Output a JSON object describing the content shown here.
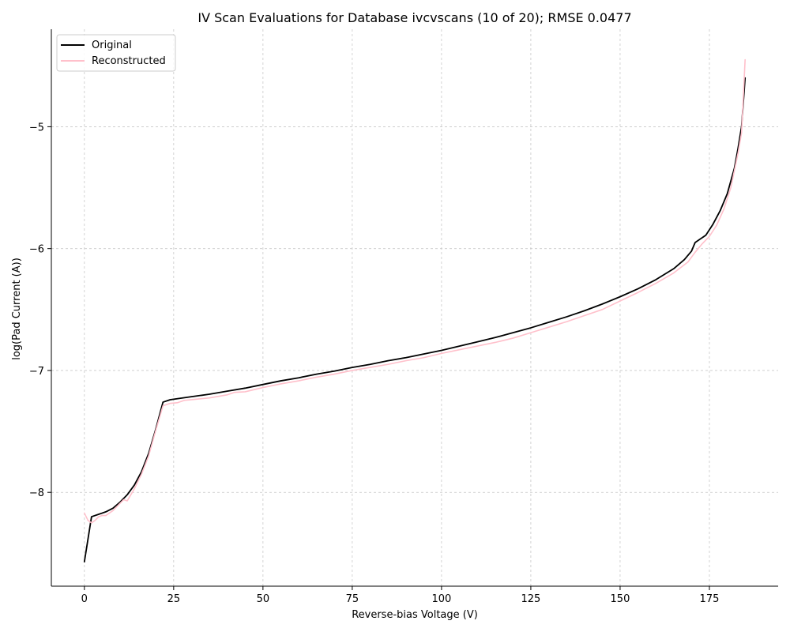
{
  "chart_data": {
    "type": "line",
    "title": "IV Scan Evaluations for Database ivcvscans (10 of 20); RMSE 0.0477",
    "xlabel": "Reverse-bias Voltage (V)",
    "ylabel": "log(Pad Current (A))",
    "xlim": [
      -9.25,
      194.25
    ],
    "ylim": [
      -8.77,
      -4.2
    ],
    "xticks": [
      0,
      25,
      50,
      75,
      100,
      125,
      150,
      175
    ],
    "yticks": [
      -8,
      -7,
      -6,
      -5
    ],
    "ytick_labels": [
      "−8",
      "−7",
      "−6",
      "−5"
    ],
    "grid": true,
    "legend_position": "upper-left",
    "series": [
      {
        "name": "Original",
        "color": "#000000",
        "points": [
          [
            0,
            -8.57
          ],
          [
            2,
            -8.2
          ],
          [
            4,
            -8.18
          ],
          [
            6,
            -8.16
          ],
          [
            8,
            -8.13
          ],
          [
            10,
            -8.08
          ],
          [
            12,
            -8.02
          ],
          [
            14,
            -7.94
          ],
          [
            16,
            -7.83
          ],
          [
            18,
            -7.68
          ],
          [
            20,
            -7.48
          ],
          [
            22,
            -7.26
          ],
          [
            24,
            -7.24
          ],
          [
            30,
            -7.215
          ],
          [
            35,
            -7.195
          ],
          [
            40,
            -7.17
          ],
          [
            45,
            -7.145
          ],
          [
            50,
            -7.115
          ],
          [
            55,
            -7.085
          ],
          [
            60,
            -7.06
          ],
          [
            65,
            -7.03
          ],
          [
            70,
            -7.005
          ],
          [
            75,
            -6.975
          ],
          [
            80,
            -6.95
          ],
          [
            85,
            -6.92
          ],
          [
            90,
            -6.895
          ],
          [
            95,
            -6.865
          ],
          [
            100,
            -6.835
          ],
          [
            105,
            -6.8
          ],
          [
            110,
            -6.765
          ],
          [
            115,
            -6.73
          ],
          [
            120,
            -6.69
          ],
          [
            125,
            -6.65
          ],
          [
            130,
            -6.605
          ],
          [
            135,
            -6.56
          ],
          [
            140,
            -6.51
          ],
          [
            145,
            -6.455
          ],
          [
            150,
            -6.395
          ],
          [
            155,
            -6.33
          ],
          [
            160,
            -6.255
          ],
          [
            165,
            -6.165
          ],
          [
            168,
            -6.09
          ],
          [
            170,
            -6.02
          ],
          [
            171,
            -5.95
          ],
          [
            174,
            -5.89
          ],
          [
            176,
            -5.8
          ],
          [
            178,
            -5.69
          ],
          [
            180,
            -5.55
          ],
          [
            182,
            -5.34
          ],
          [
            183,
            -5.18
          ],
          [
            184,
            -5.0
          ],
          [
            185,
            -4.6
          ]
        ]
      },
      {
        "name": "Reconstructed",
        "color": "#ffc0cb",
        "points": [
          [
            0,
            -8.17
          ],
          [
            1,
            -8.23
          ],
          [
            2,
            -8.25
          ],
          [
            3,
            -8.23
          ],
          [
            4,
            -8.2
          ],
          [
            5,
            -8.19
          ],
          [
            6,
            -8.19
          ],
          [
            7,
            -8.17
          ],
          [
            8,
            -8.15
          ],
          [
            9,
            -8.12
          ],
          [
            10,
            -8.09
          ],
          [
            11,
            -8.06
          ],
          [
            12,
            -8.07
          ],
          [
            13,
            -8.02
          ],
          [
            14,
            -7.97
          ],
          [
            16,
            -7.85
          ],
          [
            18,
            -7.7
          ],
          [
            20,
            -7.49
          ],
          [
            22,
            -7.29
          ],
          [
            24,
            -7.27
          ],
          [
            26,
            -7.265
          ],
          [
            28,
            -7.245
          ],
          [
            30,
            -7.24
          ],
          [
            35,
            -7.225
          ],
          [
            40,
            -7.2
          ],
          [
            42,
            -7.18
          ],
          [
            45,
            -7.175
          ],
          [
            50,
            -7.14
          ],
          [
            55,
            -7.11
          ],
          [
            60,
            -7.085
          ],
          [
            65,
            -7.055
          ],
          [
            70,
            -7.03
          ],
          [
            75,
            -7.0
          ],
          [
            80,
            -6.975
          ],
          [
            85,
            -6.95
          ],
          [
            90,
            -6.92
          ],
          [
            95,
            -6.895
          ],
          [
            100,
            -6.86
          ],
          [
            105,
            -6.83
          ],
          [
            110,
            -6.8
          ],
          [
            115,
            -6.77
          ],
          [
            120,
            -6.735
          ],
          [
            125,
            -6.69
          ],
          [
            130,
            -6.645
          ],
          [
            135,
            -6.6
          ],
          [
            140,
            -6.55
          ],
          [
            145,
            -6.5
          ],
          [
            150,
            -6.43
          ],
          [
            155,
            -6.36
          ],
          [
            160,
            -6.285
          ],
          [
            165,
            -6.2
          ],
          [
            169,
            -6.11
          ],
          [
            171,
            -6.03
          ],
          [
            173,
            -5.96
          ],
          [
            175,
            -5.9
          ],
          [
            177,
            -5.81
          ],
          [
            179,
            -5.68
          ],
          [
            181,
            -5.5
          ],
          [
            182,
            -5.36
          ],
          [
            183,
            -5.22
          ],
          [
            184,
            -5.05
          ],
          [
            185,
            -4.45
          ]
        ]
      }
    ]
  }
}
